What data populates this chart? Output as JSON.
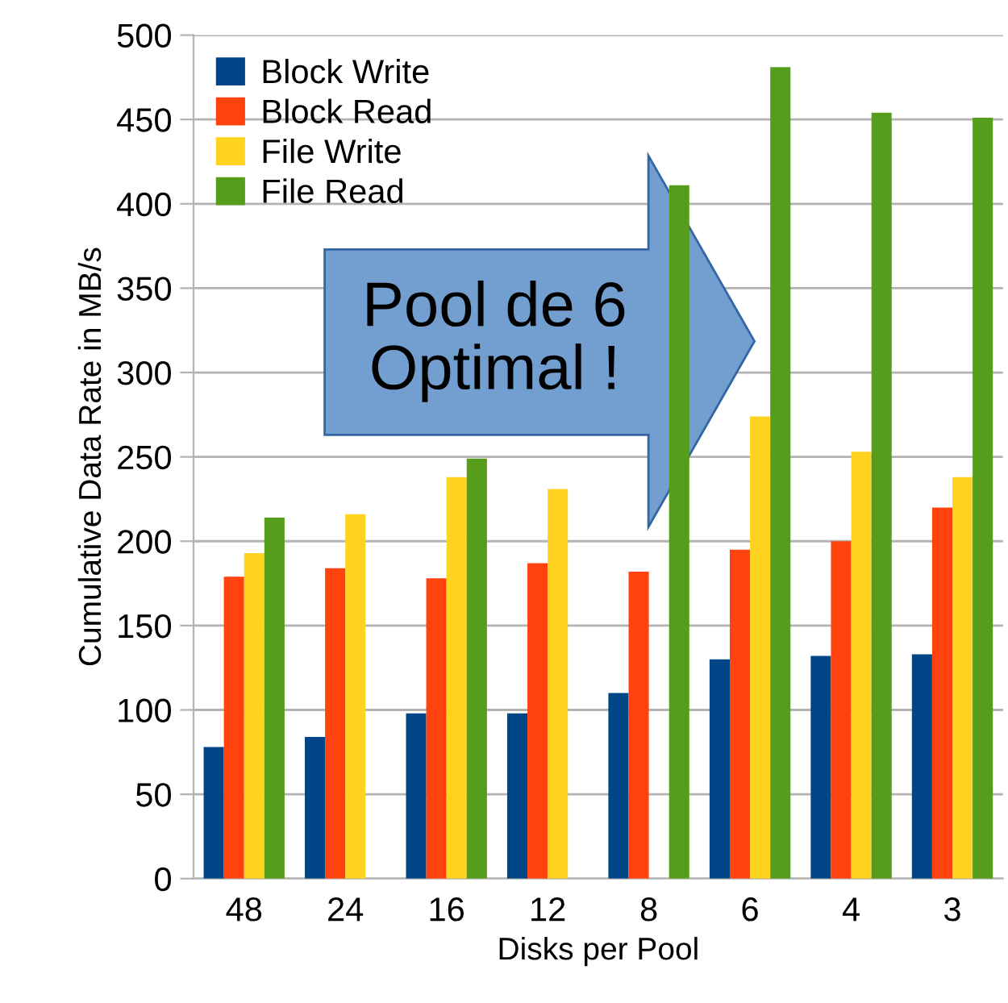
{
  "chart_data": {
    "type": "bar",
    "xlabel": "Disks per Pool",
    "ylabel": "Cumulative Data Rate in MB/s",
    "categories": [
      "48",
      "24",
      "16",
      "12",
      "8",
      "6",
      "4",
      "3"
    ],
    "series": [
      {
        "name": "Block Write",
        "color": "#004586",
        "values": [
          78,
          84,
          98,
          98,
          110,
          130,
          132,
          133
        ]
      },
      {
        "name": "Block Read",
        "color": "#ff420e",
        "values": [
          179,
          184,
          178,
          187,
          182,
          195,
          200,
          220
        ]
      },
      {
        "name": "File Write",
        "color": "#ffd320",
        "values": [
          193,
          216,
          238,
          231,
          null,
          274,
          253,
          238
        ]
      },
      {
        "name": "File Read",
        "color": "#579d1c",
        "values": [
          214,
          null,
          249,
          null,
          411,
          481,
          454,
          451
        ]
      }
    ],
    "ylim": [
      0,
      500
    ],
    "yticks": [
      0,
      50,
      100,
      150,
      200,
      250,
      300,
      350,
      400,
      450,
      500
    ],
    "grid": "y",
    "legend": "top left",
    "annotations": [
      "Pool de 6\nOptimal !"
    ]
  }
}
